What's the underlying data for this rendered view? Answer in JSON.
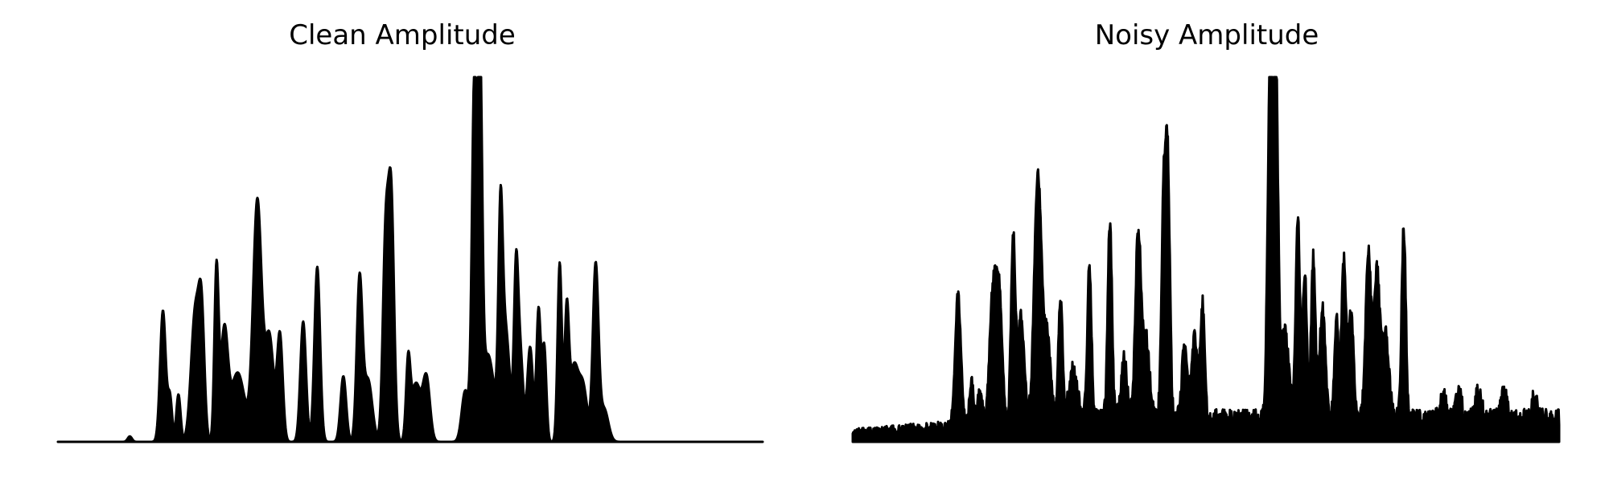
{
  "chart_data": [
    {
      "type": "area",
      "title": "Clean Amplitude",
      "xlabel": "",
      "ylabel": "",
      "axes_visible": false,
      "grid": false,
      "color": "#000000",
      "x_domain": [
        0,
        1
      ],
      "ylim": [
        0,
        1.0
      ],
      "noise_floor": 0.0,
      "noise_amp": 0.0,
      "peaks": [
        {
          "x": 0.102,
          "h": 0.015,
          "w": 0.003
        },
        {
          "x": 0.149,
          "h": 0.36,
          "w": 0.004
        },
        {
          "x": 0.159,
          "h": 0.12,
          "w": 0.003
        },
        {
          "x": 0.171,
          "h": 0.13,
          "w": 0.003
        },
        {
          "x": 0.195,
          "h": 0.36,
          "w": 0.006
        },
        {
          "x": 0.204,
          "h": 0.3,
          "w": 0.004
        },
        {
          "x": 0.225,
          "h": 0.47,
          "w": 0.003
        },
        {
          "x": 0.236,
          "h": 0.29,
          "w": 0.005
        },
        {
          "x": 0.255,
          "h": 0.19,
          "w": 0.01
        },
        {
          "x": 0.283,
          "h": 0.66,
          "w": 0.006
        },
        {
          "x": 0.3,
          "h": 0.29,
          "w": 0.006
        },
        {
          "x": 0.315,
          "h": 0.29,
          "w": 0.004
        },
        {
          "x": 0.348,
          "h": 0.33,
          "w": 0.004
        },
        {
          "x": 0.368,
          "h": 0.48,
          "w": 0.004
        },
        {
          "x": 0.405,
          "h": 0.18,
          "w": 0.004
        },
        {
          "x": 0.428,
          "h": 0.44,
          "w": 0.004
        },
        {
          "x": 0.44,
          "h": 0.17,
          "w": 0.006
        },
        {
          "x": 0.465,
          "h": 0.55,
          "w": 0.004
        },
        {
          "x": 0.473,
          "h": 0.65,
          "w": 0.004
        },
        {
          "x": 0.497,
          "h": 0.2,
          "w": 0.003
        },
        {
          "x": 0.508,
          "h": 0.16,
          "w": 0.007
        },
        {
          "x": 0.523,
          "h": 0.17,
          "w": 0.005
        },
        {
          "x": 0.578,
          "h": 0.14,
          "w": 0.005
        },
        {
          "x": 0.591,
          "h": 0.99,
          "w": 0.0035
        },
        {
          "x": 0.599,
          "h": 0.94,
          "w": 0.003
        },
        {
          "x": 0.61,
          "h": 0.24,
          "w": 0.009
        },
        {
          "x": 0.628,
          "h": 0.51,
          "w": 0.003
        },
        {
          "x": 0.635,
          "h": 0.31,
          "w": 0.006
        },
        {
          "x": 0.65,
          "h": 0.43,
          "w": 0.003
        },
        {
          "x": 0.656,
          "h": 0.24,
          "w": 0.004
        },
        {
          "x": 0.67,
          "h": 0.26,
          "w": 0.004
        },
        {
          "x": 0.682,
          "h": 0.36,
          "w": 0.003
        },
        {
          "x": 0.69,
          "h": 0.26,
          "w": 0.003
        },
        {
          "x": 0.712,
          "h": 0.49,
          "w": 0.003
        },
        {
          "x": 0.722,
          "h": 0.34,
          "w": 0.003
        },
        {
          "x": 0.732,
          "h": 0.2,
          "w": 0.006
        },
        {
          "x": 0.745,
          "h": 0.15,
          "w": 0.006
        },
        {
          "x": 0.763,
          "h": 0.48,
          "w": 0.004
        },
        {
          "x": 0.775,
          "h": 0.09,
          "w": 0.006
        }
      ]
    },
    {
      "type": "area",
      "title": "Noisy Amplitude",
      "xlabel": "",
      "ylabel": "",
      "axes_visible": false,
      "grid": false,
      "color": "#000000",
      "x_domain": [
        0,
        1
      ],
      "ylim": [
        0,
        1.0
      ],
      "noise_floor": 0.04,
      "noise_amp": 0.05,
      "peaks": [
        {
          "x": 0.149,
          "h": 0.36,
          "w": 0.004
        },
        {
          "x": 0.168,
          "h": 0.12,
          "w": 0.003
        },
        {
          "x": 0.18,
          "h": 0.1,
          "w": 0.003
        },
        {
          "x": 0.199,
          "h": 0.38,
          "w": 0.005
        },
        {
          "x": 0.208,
          "h": 0.3,
          "w": 0.004
        },
        {
          "x": 0.227,
          "h": 0.5,
          "w": 0.003
        },
        {
          "x": 0.238,
          "h": 0.29,
          "w": 0.005
        },
        {
          "x": 0.262,
          "h": 0.68,
          "w": 0.005
        },
        {
          "x": 0.275,
          "h": 0.23,
          "w": 0.005
        },
        {
          "x": 0.294,
          "h": 0.33,
          "w": 0.003
        },
        {
          "x": 0.312,
          "h": 0.14,
          "w": 0.006
        },
        {
          "x": 0.335,
          "h": 0.41,
          "w": 0.003
        },
        {
          "x": 0.364,
          "h": 0.54,
          "w": 0.003
        },
        {
          "x": 0.384,
          "h": 0.17,
          "w": 0.004
        },
        {
          "x": 0.404,
          "h": 0.5,
          "w": 0.004
        },
        {
          "x": 0.415,
          "h": 0.22,
          "w": 0.005
        },
        {
          "x": 0.44,
          "h": 0.59,
          "w": 0.003
        },
        {
          "x": 0.446,
          "h": 0.67,
          "w": 0.003
        },
        {
          "x": 0.47,
          "h": 0.2,
          "w": 0.004
        },
        {
          "x": 0.484,
          "h": 0.22,
          "w": 0.004
        },
        {
          "x": 0.495,
          "h": 0.31,
          "w": 0.003
        },
        {
          "x": 0.591,
          "h": 0.99,
          "w": 0.0035
        },
        {
          "x": 0.599,
          "h": 0.94,
          "w": 0.003
        },
        {
          "x": 0.611,
          "h": 0.24,
          "w": 0.006
        },
        {
          "x": 0.63,
          "h": 0.55,
          "w": 0.003
        },
        {
          "x": 0.64,
          "h": 0.39,
          "w": 0.003
        },
        {
          "x": 0.652,
          "h": 0.44,
          "w": 0.003
        },
        {
          "x": 0.665,
          "h": 0.3,
          "w": 0.004
        },
        {
          "x": 0.685,
          "h": 0.27,
          "w": 0.003
        },
        {
          "x": 0.695,
          "h": 0.42,
          "w": 0.003
        },
        {
          "x": 0.705,
          "h": 0.29,
          "w": 0.004
        },
        {
          "x": 0.73,
          "h": 0.45,
          "w": 0.004
        },
        {
          "x": 0.742,
          "h": 0.39,
          "w": 0.004
        },
        {
          "x": 0.754,
          "h": 0.23,
          "w": 0.005
        },
        {
          "x": 0.78,
          "h": 0.52,
          "w": 0.003
        },
        {
          "x": 0.836,
          "h": 0.06,
          "w": 0.004
        },
        {
          "x": 0.858,
          "h": 0.07,
          "w": 0.004
        },
        {
          "x": 0.886,
          "h": 0.08,
          "w": 0.004
        },
        {
          "x": 0.922,
          "h": 0.07,
          "w": 0.004
        },
        {
          "x": 0.965,
          "h": 0.06,
          "w": 0.004
        }
      ]
    }
  ]
}
